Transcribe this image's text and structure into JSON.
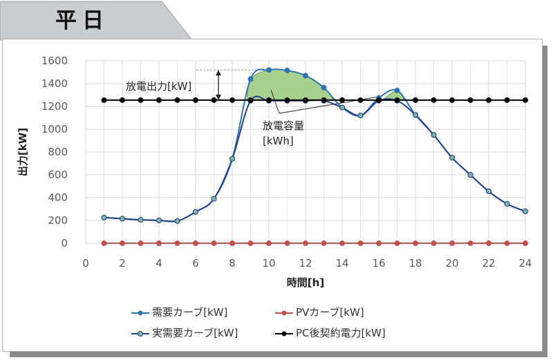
{
  "tab": {
    "title": "平日",
    "color": "#c9ccd0"
  },
  "chart_data": {
    "type": "line",
    "xlabel": "時間[h]",
    "ylabel": "出力[kW]",
    "xlim": [
      0,
      24
    ],
    "ylim": [
      0,
      1600
    ],
    "x_ticks": [
      0,
      2,
      4,
      6,
      8,
      10,
      12,
      14,
      16,
      18,
      20,
      22,
      24
    ],
    "y_ticks": [
      0,
      200,
      400,
      600,
      800,
      1000,
      1200,
      1400,
      1600
    ],
    "grid": true,
    "legend_position": "bottom",
    "x": [
      1,
      2,
      3,
      4,
      5,
      6,
      7,
      8,
      9,
      10,
      11,
      12,
      13,
      14,
      15,
      16,
      17,
      18,
      19,
      20,
      21,
      22,
      23,
      24
    ],
    "series": [
      {
        "name": "需要カーブ[kW]",
        "color": "#2e75b6",
        "values": [
          225,
          215,
          205,
          200,
          195,
          275,
          390,
          740,
          1440,
          1520,
          1515,
          1470,
          1365,
          1190,
          1120,
          1275,
          1340,
          1125,
          950,
          750,
          600,
          455,
          345,
          280
        ]
      },
      {
        "name": "PVカーブ[kW]",
        "color": "#c0504d",
        "values": [
          0,
          0,
          0,
          0,
          0,
          0,
          0,
          0,
          0,
          0,
          0,
          0,
          0,
          0,
          0,
          0,
          0,
          0,
          0,
          0,
          0,
          0,
          0,
          0
        ]
      },
      {
        "name": "実需要カーブ[kW]",
        "color": "#1f3f8f",
        "values": [
          225,
          215,
          205,
          200,
          195,
          275,
          390,
          740,
          1250,
          1250,
          1250,
          1250,
          1250,
          1190,
          1120,
          1250,
          1250,
          1125,
          950,
          750,
          600,
          455,
          345,
          280
        ]
      },
      {
        "name": "PC後契約電力[kW]",
        "color": "#000000",
        "values": [
          1255,
          1255,
          1255,
          1255,
          1255,
          1255,
          1255,
          1255,
          1255,
          1255,
          1255,
          1255,
          1255,
          1255,
          1255,
          1255,
          1255,
          1255,
          1255,
          1255,
          1255,
          1255,
          1255,
          1255
        ]
      }
    ],
    "annotations": [
      {
        "text": "放電出力[kW]"
      },
      {
        "text": "放電容量"
      },
      {
        "text": "[kWh]"
      }
    ],
    "fill_color": "#a9d18e"
  }
}
